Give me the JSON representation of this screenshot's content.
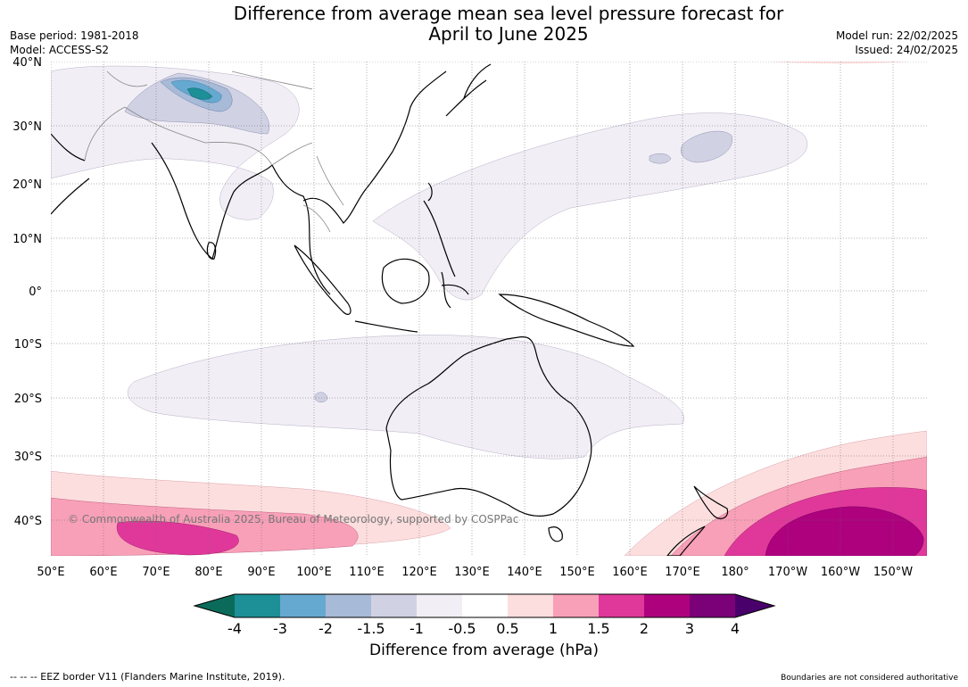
{
  "title_line1": "Difference from average mean sea level pressure forecast for",
  "title_line2": "April to June 2025",
  "base_period": "Base period: 1981-2018",
  "model": "Model: ACCESS-S2",
  "model_run": "Model run: 22/02/2025",
  "issued": "Issued: 24/02/2025",
  "latitude_labels": [
    "40°N",
    "30°N",
    "20°N",
    "10°N",
    "0°",
    "10°S",
    "20°S",
    "30°S",
    "40°S"
  ],
  "longitude_labels": [
    "50°E",
    "60°E",
    "70°E",
    "80°E",
    "90°E",
    "100°E",
    "110°E",
    "120°E",
    "130°E",
    "140°E",
    "150°E",
    "160°E",
    "170°E",
    "180°",
    "170°W",
    "160°W",
    "150°W"
  ],
  "copyright": "© Commonwealth of Australia 2025, Bureau of Meteorology, supported by COSPPac",
  "colorbar": {
    "label": "Difference from average (hPa)",
    "ticks": [
      "-4",
      "-3",
      "-2",
      "-1.5",
      "-1",
      "-0.5",
      "0.5",
      "1",
      "1.5",
      "2",
      "3",
      "4"
    ],
    "colors": {
      "below_min": "#0b6b5a",
      "c_m4_m3": "#1d8f96",
      "c_m3_m2": "#66a9d0",
      "c_m2_m15": "#a7bad7",
      "c_m15_m1": "#d0d2e4",
      "c_m1_m05": "#f1eef5",
      "c_m05_05": "#ffffff",
      "c_05_1": "#fddede",
      "c_1_15": "#f8a0b8",
      "c_15_2": "#e0389a",
      "c_2_3": "#ae017e",
      "c_3_4": "#7a0177",
      "above_max": "#49006a"
    }
  },
  "footer_left": "--  --  -- EEZ border V11 (Flanders Marine Institute, 2019).",
  "footer_right": "Boundaries are not considered authoritative"
}
